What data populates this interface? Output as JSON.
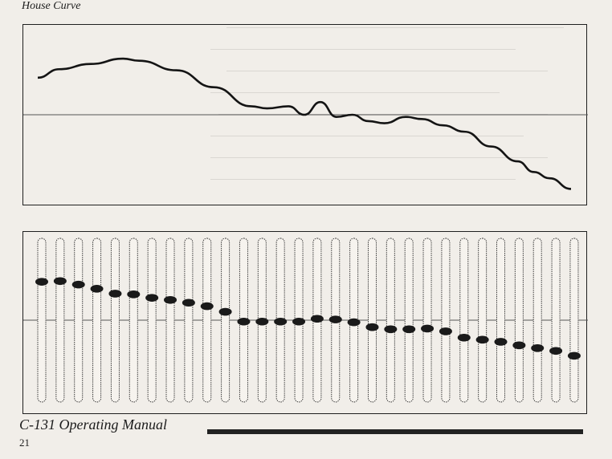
{
  "document": {
    "figure_label": "House Curve",
    "footer_title": "C-131 Operating Manual",
    "page_number": "21"
  },
  "chart_data": [
    {
      "type": "line",
      "title": "House Curve",
      "xlabel": "",
      "ylabel": "",
      "grid": false,
      "ylim": [
        -10,
        6
      ],
      "x": [
        0,
        0.04,
        0.1,
        0.16,
        0.19,
        0.26,
        0.33,
        0.4,
        0.43,
        0.47,
        0.5,
        0.53,
        0.56,
        0.59,
        0.62,
        0.65,
        0.69,
        0.72,
        0.76,
        0.8,
        0.85,
        0.9,
        0.93,
        0.96,
        1.0
      ],
      "series": [
        {
          "values": [
            3.5,
            4.3,
            4.8,
            5.3,
            5.1,
            4.2,
            2.6,
            0.8,
            0.6,
            0.8,
            0.0,
            1.2,
            -0.2,
            0.0,
            -0.6,
            -0.8,
            -0.2,
            -0.4,
            -1.0,
            -1.6,
            -3.0,
            -4.4,
            -5.4,
            -6.0,
            -7.0
          ]
        }
      ]
    },
    {
      "type": "scatter",
      "title": "",
      "xlabel": "",
      "ylabel": "",
      "grid": false,
      "ylim": [
        -12,
        12
      ],
      "bands": 30,
      "series": [
        {
          "values": [
            5.5,
            5.6,
            5.1,
            4.5,
            3.8,
            3.7,
            3.2,
            2.9,
            2.5,
            2.0,
            1.2,
            -0.2,
            -0.2,
            -0.2,
            -0.2,
            0.2,
            0.1,
            -0.3,
            -1.0,
            -1.3,
            -1.3,
            -1.2,
            -1.6,
            -2.5,
            -2.8,
            -3.1,
            -3.6,
            -4.0,
            -4.4,
            -5.1
          ]
        }
      ]
    }
  ]
}
